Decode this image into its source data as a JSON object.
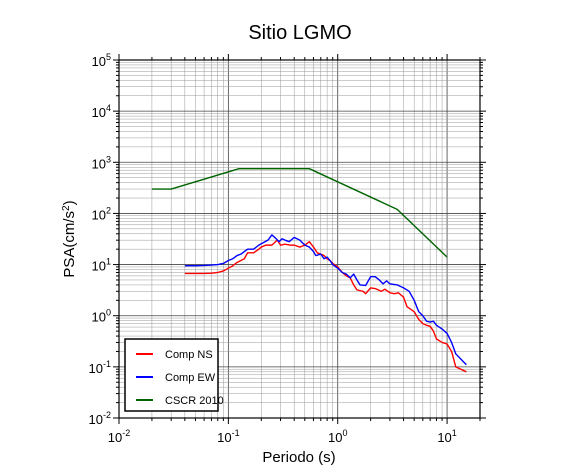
{
  "chart_data": {
    "type": "line",
    "title": "Sitio LGMO",
    "xlabel": "Periodo (s)",
    "ylabel": {
      "base": "PSA(cm/s",
      "sup": "2",
      "close": ")"
    },
    "x_scale": "log",
    "y_scale": "log",
    "xlim": [
      0.01,
      20
    ],
    "ylim": [
      0.01,
      100000
    ],
    "x_ticks": [
      {
        "value": 0.01,
        "base": "10",
        "exp": "-2"
      },
      {
        "value": 0.1,
        "base": "10",
        "exp": "-1"
      },
      {
        "value": 1,
        "base": "10",
        "exp": "0"
      },
      {
        "value": 10,
        "base": "10",
        "exp": "1"
      }
    ],
    "y_ticks": [
      {
        "value": 0.01,
        "base": "10",
        "exp": "-2"
      },
      {
        "value": 0.1,
        "base": "10",
        "exp": "-1"
      },
      {
        "value": 1,
        "base": "10",
        "exp": "0"
      },
      {
        "value": 10,
        "base": "10",
        "exp": "1"
      },
      {
        "value": 100,
        "base": "10",
        "exp": "2"
      },
      {
        "value": 1000,
        "base": "10",
        "exp": "3"
      },
      {
        "value": 10000,
        "base": "10",
        "exp": "4"
      },
      {
        "value": 100000,
        "base": "10",
        "exp": "5"
      }
    ],
    "grid": true,
    "legend_position": "bottom-left",
    "series": [
      {
        "name": "Comp NS",
        "color": "#ff0000",
        "points": [
          [
            0.04,
            6.7
          ],
          [
            0.05,
            6.7
          ],
          [
            0.06,
            6.7
          ],
          [
            0.07,
            6.8
          ],
          [
            0.08,
            7.0
          ],
          [
            0.09,
            7.5
          ],
          [
            0.1,
            8.5
          ],
          [
            0.11,
            9.5
          ],
          [
            0.12,
            11
          ],
          [
            0.14,
            13
          ],
          [
            0.15,
            17
          ],
          [
            0.17,
            17
          ],
          [
            0.19,
            20
          ],
          [
            0.2,
            22
          ],
          [
            0.22,
            24
          ],
          [
            0.25,
            24
          ],
          [
            0.28,
            30
          ],
          [
            0.3,
            24
          ],
          [
            0.33,
            25
          ],
          [
            0.37,
            24
          ],
          [
            0.4,
            24
          ],
          [
            0.45,
            22
          ],
          [
            0.5,
            24
          ],
          [
            0.55,
            28
          ],
          [
            0.6,
            22
          ],
          [
            0.65,
            17
          ],
          [
            0.7,
            16
          ],
          [
            0.75,
            15
          ],
          [
            0.8,
            13
          ],
          [
            0.85,
            12
          ],
          [
            0.9,
            10.5
          ],
          [
            1.0,
            9
          ],
          [
            1.1,
            7
          ],
          [
            1.2,
            6
          ],
          [
            1.3,
            5.5
          ],
          [
            1.4,
            4
          ],
          [
            1.5,
            3.2
          ],
          [
            1.7,
            3.0
          ],
          [
            1.8,
            2.7
          ],
          [
            2.0,
            3.5
          ],
          [
            2.2,
            3.4
          ],
          [
            2.5,
            3.0
          ],
          [
            2.7,
            3.3
          ],
          [
            3.0,
            2.8
          ],
          [
            3.3,
            2.7
          ],
          [
            3.6,
            2.8
          ],
          [
            4.0,
            2.3
          ],
          [
            4.3,
            1.5
          ],
          [
            5.0,
            1.2
          ],
          [
            5.5,
            0.85
          ],
          [
            6.0,
            0.7
          ],
          [
            6.5,
            0.65
          ],
          [
            7.0,
            0.62
          ],
          [
            7.5,
            0.5
          ],
          [
            8.0,
            0.35
          ],
          [
            9.0,
            0.3
          ],
          [
            10.0,
            0.28
          ],
          [
            11.0,
            0.2
          ],
          [
            12.0,
            0.1
          ],
          [
            15.0,
            0.08
          ]
        ]
      },
      {
        "name": "Comp EW",
        "color": "#0000ff",
        "points": [
          [
            0.04,
            9.5
          ],
          [
            0.05,
            9.5
          ],
          [
            0.06,
            9.6
          ],
          [
            0.07,
            9.8
          ],
          [
            0.08,
            10
          ],
          [
            0.09,
            10.5
          ],
          [
            0.1,
            12
          ],
          [
            0.11,
            13
          ],
          [
            0.12,
            15
          ],
          [
            0.13,
            16
          ],
          [
            0.14,
            18
          ],
          [
            0.15,
            20
          ],
          [
            0.17,
            20
          ],
          [
            0.19,
            24
          ],
          [
            0.21,
            27
          ],
          [
            0.23,
            30
          ],
          [
            0.25,
            38
          ],
          [
            0.27,
            33
          ],
          [
            0.29,
            28
          ],
          [
            0.31,
            32
          ],
          [
            0.33,
            30
          ],
          [
            0.36,
            28
          ],
          [
            0.4,
            34
          ],
          [
            0.45,
            30
          ],
          [
            0.5,
            24
          ],
          [
            0.55,
            22
          ],
          [
            0.6,
            18
          ],
          [
            0.63,
            15
          ],
          [
            0.7,
            16
          ],
          [
            0.75,
            13
          ],
          [
            0.8,
            14
          ],
          [
            0.85,
            12
          ],
          [
            0.9,
            10
          ],
          [
            1.0,
            8.5
          ],
          [
            1.1,
            7
          ],
          [
            1.2,
            6.5
          ],
          [
            1.3,
            5.5
          ],
          [
            1.4,
            6.5
          ],
          [
            1.5,
            5.0
          ],
          [
            1.6,
            4.0
          ],
          [
            1.8,
            3.9
          ],
          [
            2.0,
            5.8
          ],
          [
            2.2,
            5.8
          ],
          [
            2.4,
            5.0
          ],
          [
            2.6,
            4.2
          ],
          [
            2.8,
            4.8
          ],
          [
            3.0,
            4.2
          ],
          [
            3.5,
            4.0
          ],
          [
            4.0,
            3.5
          ],
          [
            4.5,
            3.0
          ],
          [
            5.0,
            2.0
          ],
          [
            5.5,
            1.2
          ],
          [
            6.0,
            1.0
          ],
          [
            6.5,
            0.78
          ],
          [
            7.0,
            0.75
          ],
          [
            7.5,
            0.78
          ],
          [
            8.0,
            0.65
          ],
          [
            9.0,
            0.55
          ],
          [
            10.0,
            0.45
          ],
          [
            11.0,
            0.3
          ],
          [
            12.0,
            0.18
          ],
          [
            15.0,
            0.11
          ]
        ]
      },
      {
        "name": "CSCR 2010",
        "color": "#006400",
        "points": [
          [
            0.02,
            300
          ],
          [
            0.03,
            300
          ],
          [
            0.125,
            750
          ],
          [
            0.55,
            750
          ],
          [
            3.5,
            120
          ],
          [
            10.0,
            14
          ]
        ]
      }
    ]
  }
}
